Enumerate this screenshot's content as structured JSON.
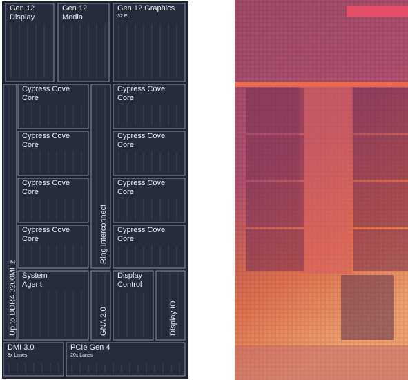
{
  "blocks": [
    {
      "lines": [
        "Gen 12",
        "Display"
      ]
    },
    {
      "lines": [
        "Gen 12",
        "Media"
      ]
    },
    {
      "lines": [
        "Gen 12 Graphics",
        "32 EU"
      ]
    },
    {
      "lines": [
        "Cypress Cove",
        "Core"
      ]
    },
    {
      "lines": [
        "Cypress Cove",
        "Core"
      ]
    },
    {
      "lines": [
        "Cypress Cove",
        "Core"
      ]
    },
    {
      "lines": [
        "Cypress Cove",
        "Core"
      ]
    },
    {
      "lines": [
        "Cypress Cove",
        "Core"
      ]
    },
    {
      "lines": [
        "Cypress Cove",
        "Core"
      ]
    },
    {
      "lines": [
        "Cypress Cove",
        "Core"
      ]
    },
    {
      "lines": [
        "Cypress Cove",
        "Core"
      ]
    },
    {
      "lines": [
        "Ring Interconnect"
      ]
    },
    {
      "lines": [
        "Up to DDR4 3200MHz"
      ]
    },
    {
      "lines": [
        "System",
        "Agent"
      ]
    },
    {
      "lines": [
        "GNA 2.0"
      ]
    },
    {
      "lines": [
        "Display",
        "Control"
      ]
    },
    {
      "lines": [
        "Display IO"
      ]
    },
    {
      "lines": [
        "DMI 3.0",
        "8x Lanes"
      ]
    },
    {
      "lines": [
        "PCIe Gen 4",
        "20x Lanes"
      ]
    }
  ]
}
